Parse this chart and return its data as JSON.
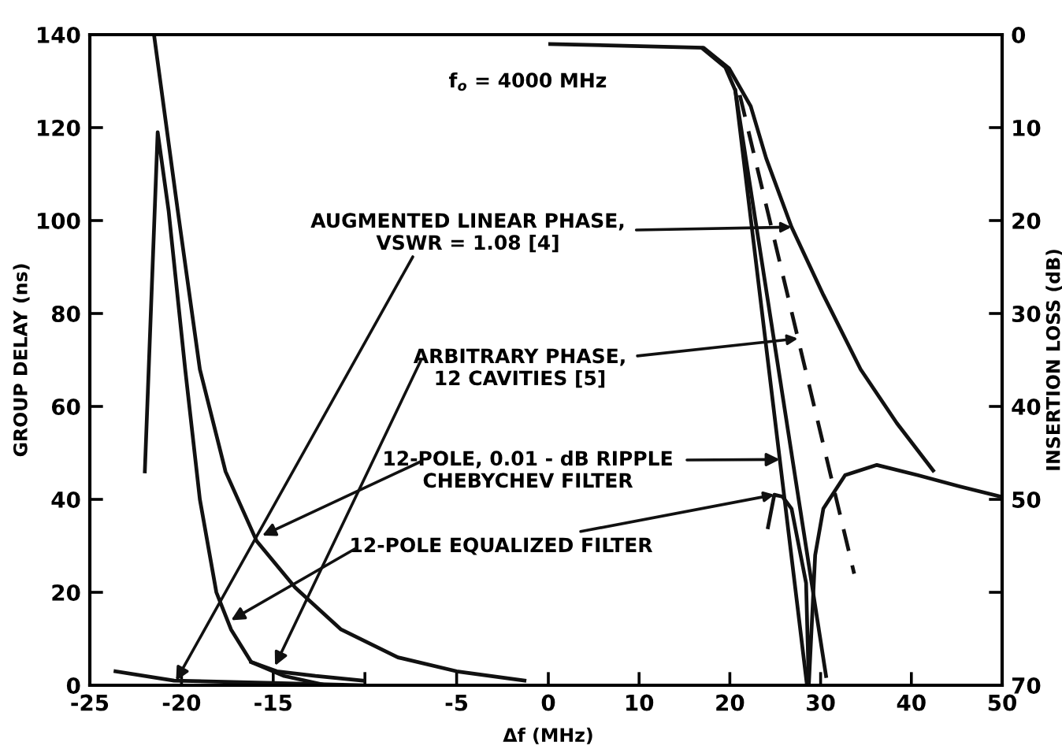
{
  "chart_data": [
    {
      "type": "line",
      "ylabel": "GROUP DELAY (ns)",
      "xlim": [
        -25,
        0
      ],
      "xticks": [
        -25,
        -20,
        -15,
        {
          "value": -10,
          "label": null
        },
        -5
      ],
      "ylim": [
        0,
        140
      ],
      "yticks": [
        0,
        20,
        40,
        60,
        80,
        100,
        120,
        140
      ],
      "grid": false,
      "legend": false,
      "marker": "none",
      "series": [
        {
          "color": "#111111",
          "line_style": "solid",
          "x": [
            -21.5,
            -20.2,
            -19.0,
            -17.6,
            -15.9,
            -13.8,
            -11.3,
            -8.2,
            -5.0,
            -1.3
          ],
          "values": [
            140,
            102,
            68,
            46,
            31,
            21,
            12,
            6,
            3,
            1
          ]
        },
        {
          "color": "#111111",
          "line_style": "solid",
          "x": [
            -22.0,
            -21.3,
            -20.7,
            -19.8,
            -19.0,
            -18.1,
            -17.3,
            -16.2,
            -14.4,
            -12.1
          ],
          "values": [
            46,
            119,
            102,
            68,
            40,
            20,
            12,
            5,
            2,
            0
          ]
        },
        {
          "color": "#111111",
          "line_style": "solid",
          "x": [
            -16.2,
            -14.8,
            -12.7,
            -10.1
          ],
          "values": [
            5,
            3,
            2,
            1
          ]
        },
        {
          "color": "#111111",
          "line_style": "solid",
          "x": [
            -23.6,
            -20.4,
            -15.0,
            -10.1
          ],
          "values": [
            3,
            1,
            0.5,
            0
          ]
        }
      ]
    },
    {
      "type": "line",
      "xlabel": "Δf (MHz)",
      "ylabel": "INSERTION LOSS (dB)",
      "xlim": [
        0,
        50
      ],
      "xticks": [
        0,
        10,
        20,
        30,
        40,
        50
      ],
      "ylim": [
        70,
        0
      ],
      "yticks": [
        0,
        10,
        20,
        30,
        40,
        50,
        {
          "value": 60,
          "label": null
        },
        70
      ],
      "grid": false,
      "legend": false,
      "marker": "none",
      "annotations": [
        "f$_{o}$ = 4000 MHz",
        {
          "text": "AUGMENTED LINEAR PHASE,\nVSWR = 1.08 [4]",
          "x": 26.8,
          "y": 20.7
        },
        {
          "text": "ARBITRARY PHASE,\n12 CAVITIES [5]",
          "x": 27.5,
          "y": 32.7
        },
        "12-POLE, 0.01 - dB RIPPLE\nCHEBYCHEV FILTER",
        {
          "text": "12-POLE EQUALIZED FILTER",
          "x": 24.9,
          "y": 49.5
        }
      ],
      "series": [
        {
          "color": "#111111",
          "line_style": "solid",
          "x": [
            0,
            17.1,
            19.9,
            22.3,
            24.0,
            26.8,
            30.3,
            34.4,
            38.4,
            42.4
          ],
          "values": [
            1,
            1.4,
            3.6,
            7.7,
            13.3,
            20.7,
            28,
            36,
            41.8,
            46.9
          ]
        },
        {
          "color": "#111111",
          "line_style": "solid",
          "x": [
            17,
            19.5,
            20.6,
            28.5
          ],
          "values": [
            1.5,
            3.5,
            6,
            70
          ]
        },
        {
          "color": "#111111",
          "line_style": "solid",
          "x": [
            20.6,
            30.6
          ],
          "values": [
            6,
            69
          ]
        },
        {
          "color": "#111111",
          "line_style": "dashed",
          "x": [
            21.1,
            33.7
          ],
          "values": [
            6.5,
            58
          ]
        },
        {
          "color": "#111111",
          "line_style": "solid",
          "x": [
            24.2,
            24.9,
            25.8,
            26.8,
            28.4,
            28.7,
            29.4,
            30.3,
            32.7,
            36.2,
            40.7,
            45.3,
            49.8
          ],
          "values": [
            53,
            49.5,
            49.7,
            51,
            59,
            70,
            56,
            51,
            47.4,
            46.3,
            47.4,
            48.6,
            49.7
          ]
        }
      ]
    }
  ]
}
